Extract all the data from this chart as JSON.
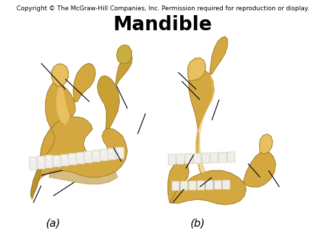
{
  "title": "Mandible",
  "copyright": "Copyright © The McGraw-Hill Companies, Inc. Permission required for reproduction or display.",
  "label_a": "(a)",
  "label_b": "(b)",
  "bg_color": "#ffffff",
  "title_fontsize": 20,
  "title_fontweight": "bold",
  "copyright_fontsize": 6.5,
  "label_fontsize": 11,
  "bone_main": "#D4A840",
  "bone_light": "#E8C060",
  "bone_dark": "#B89030",
  "bone_shadow": "#A07820",
  "tooth_color": "#F0EEE8",
  "tooth_edge": "#CCCCBB",
  "fig_width": 4.74,
  "fig_height": 3.55,
  "lines_a": [
    [
      0.075,
      0.79,
      0.145,
      0.735
    ],
    [
      0.155,
      0.755,
      0.2,
      0.695
    ],
    [
      0.245,
      0.67,
      0.265,
      0.615
    ],
    [
      0.27,
      0.585,
      0.255,
      0.545
    ],
    [
      0.165,
      0.535,
      0.195,
      0.5
    ],
    [
      0.075,
      0.475,
      0.12,
      0.445
    ],
    [
      0.05,
      0.37,
      0.07,
      0.335
    ],
    [
      0.1,
      0.345,
      0.145,
      0.315
    ]
  ],
  "lines_b": [
    [
      0.525,
      0.775,
      0.575,
      0.715
    ],
    [
      0.585,
      0.735,
      0.625,
      0.685
    ],
    [
      0.665,
      0.66,
      0.685,
      0.615
    ],
    [
      0.575,
      0.55,
      0.6,
      0.515
    ],
    [
      0.615,
      0.49,
      0.645,
      0.455
    ],
    [
      0.53,
      0.415,
      0.565,
      0.385
    ],
    [
      0.75,
      0.455,
      0.785,
      0.41
    ],
    [
      0.795,
      0.435,
      0.835,
      0.39
    ]
  ]
}
